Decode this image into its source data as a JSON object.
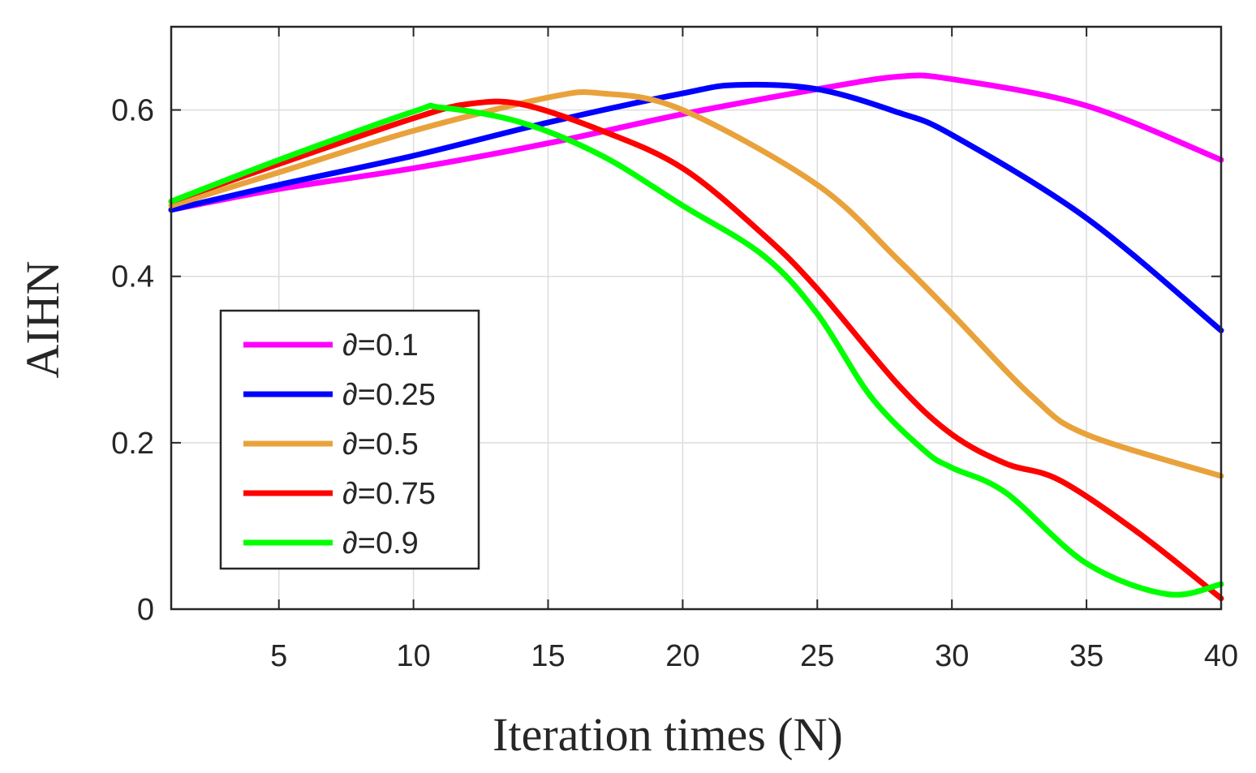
{
  "chart_data": {
    "type": "line",
    "title": "",
    "xlabel": "Iteration times (N)",
    "ylabel": "AIHN",
    "xlim": [
      1,
      40
    ],
    "ylim": [
      0,
      0.7
    ],
    "xticks": [
      5,
      10,
      15,
      20,
      25,
      30,
      35,
      40
    ],
    "xtick_labels": [
      "5",
      "10",
      "15",
      "20",
      "25",
      "30",
      "35",
      "40"
    ],
    "yticks": [
      0,
      0.2,
      0.4,
      0.6
    ],
    "ytick_labels": [
      "0",
      "0.2",
      "0.4",
      "0.6"
    ],
    "grid": true,
    "legend_position": "middle-left",
    "series": [
      {
        "name": "∂=0.1",
        "color": "#ff00ff",
        "x": [
          1,
          5,
          10,
          15,
          20,
          25,
          28,
          30,
          35,
          40
        ],
        "y": [
          0.48,
          0.505,
          0.53,
          0.56,
          0.595,
          0.625,
          0.64,
          0.637,
          0.605,
          0.54
        ]
      },
      {
        "name": "∂=0.25",
        "color": "#0000ff",
        "x": [
          1,
          5,
          10,
          15,
          20,
          22,
          25,
          28,
          30,
          35,
          40
        ],
        "y": [
          0.48,
          0.51,
          0.545,
          0.585,
          0.62,
          0.63,
          0.625,
          0.597,
          0.57,
          0.47,
          0.335
        ]
      },
      {
        "name": "∂=0.5",
        "color": "#e9a23b",
        "x": [
          1,
          5,
          10,
          15,
          17,
          20,
          25,
          28,
          30,
          33,
          35,
          40
        ],
        "y": [
          0.485,
          0.525,
          0.575,
          0.615,
          0.62,
          0.6,
          0.51,
          0.42,
          0.355,
          0.255,
          0.21,
          0.16
        ]
      },
      {
        "name": "∂=0.75",
        "color": "#ff0000",
        "x": [
          1,
          5,
          10,
          12,
          14,
          17,
          20,
          23,
          25,
          28,
          30,
          32,
          34,
          37,
          40
        ],
        "y": [
          0.49,
          0.535,
          0.59,
          0.607,
          0.607,
          0.575,
          0.53,
          0.45,
          0.385,
          0.27,
          0.21,
          0.175,
          0.155,
          0.09,
          0.013
        ]
      },
      {
        "name": "∂=0.9",
        "color": "#00ff00",
        "x": [
          1,
          5,
          10,
          11,
          14,
          17,
          20,
          23,
          25,
          27,
          29,
          30,
          32,
          35,
          38,
          40
        ],
        "y": [
          0.49,
          0.54,
          0.598,
          0.603,
          0.585,
          0.545,
          0.485,
          0.425,
          0.355,
          0.255,
          0.19,
          0.17,
          0.14,
          0.055,
          0.018,
          0.03
        ]
      }
    ]
  }
}
